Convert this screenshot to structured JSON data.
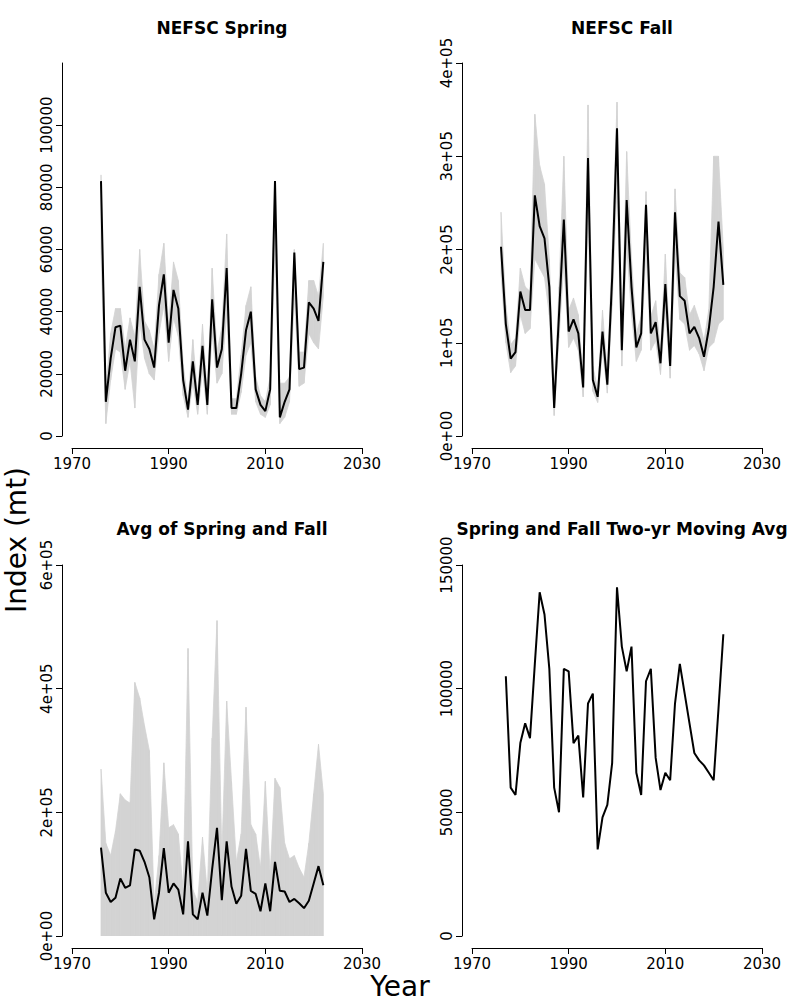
{
  "xlabel": "Year",
  "ylabel": "Index (mt)",
  "chart_data": [
    {
      "type": "line",
      "title": "NEFSC Spring",
      "color": "#000000",
      "grid": false,
      "xlim": [
        1970,
        2030
      ],
      "xticks": [
        1970,
        1990,
        2010,
        2030
      ],
      "ylim": [
        0,
        120000
      ],
      "yticks": [
        0,
        20000,
        40000,
        60000,
        80000,
        100000
      ],
      "x": [
        1976,
        1977,
        1978,
        1979,
        1980,
        1981,
        1982,
        1983,
        1984,
        1985,
        1986,
        1987,
        1988,
        1989,
        1990,
        1991,
        1992,
        1993,
        1994,
        1995,
        1996,
        1997,
        1998,
        1999,
        2000,
        2001,
        2002,
        2003,
        2004,
        2005,
        2006,
        2007,
        2008,
        2009,
        2010,
        2011,
        2012,
        2013,
        2014,
        2015,
        2016,
        2017,
        2018,
        2019,
        2020,
        2021,
        2022
      ],
      "values": [
        82000,
        11000,
        25000,
        35000,
        35500,
        21000,
        31000,
        24000,
        48000,
        31000,
        28000,
        22000,
        42000,
        52000,
        30000,
        47000,
        41000,
        18000,
        8500,
        24000,
        10000,
        29000,
        10000,
        44000,
        22000,
        28000,
        54000,
        9000,
        9000,
        20000,
        34000,
        40000,
        15000,
        10000,
        8000,
        15000,
        82000,
        6000,
        11000,
        15000,
        59000,
        21500,
        22000,
        43000,
        41000,
        37000,
        56000
      ],
      "lower": [
        60000,
        4000,
        18000,
        28000,
        27000,
        15000,
        24000,
        9000,
        37000,
        25000,
        20000,
        18000,
        33000,
        42000,
        24000,
        38000,
        32000,
        13000,
        6000,
        17000,
        7000,
        21000,
        7000,
        33000,
        17000,
        20000,
        40000,
        7000,
        7000,
        14000,
        26000,
        30000,
        11000,
        7000,
        6000,
        10000,
        62000,
        4000,
        6000,
        11000,
        45000,
        16000,
        17000,
        33000,
        30000,
        28000,
        45000
      ],
      "upper": [
        84000,
        15000,
        33000,
        41000,
        41000,
        28000,
        38000,
        32000,
        60000,
        37000,
        34000,
        28000,
        52000,
        62000,
        36000,
        56000,
        50000,
        23000,
        11000,
        31000,
        13000,
        36000,
        13000,
        54000,
        27000,
        35000,
        65000,
        12000,
        12000,
        26000,
        42000,
        48000,
        19000,
        13000,
        11000,
        19000,
        82000,
        17000,
        17000,
        19000,
        60000,
        27000,
        27000,
        50000,
        50000,
        45000,
        62000
      ]
    },
    {
      "type": "line",
      "title": "NEFSC Fall",
      "color": "#000000",
      "grid": false,
      "xlim": [
        1970,
        2030
      ],
      "xticks": [
        1970,
        1990,
        2010,
        2030
      ],
      "ylim": [
        0,
        400000
      ],
      "yticks": [
        {
          "value": 0,
          "label": "0e+00"
        },
        {
          "value": 100000,
          "label": "1e+05"
        },
        {
          "value": 200000,
          "label": "2e+05"
        },
        {
          "value": 300000,
          "label": "3e+05"
        },
        {
          "value": 400000,
          "label": "4e+05"
        }
      ],
      "x": [
        1976,
        1977,
        1978,
        1979,
        1980,
        1981,
        1982,
        1983,
        1984,
        1985,
        1986,
        1987,
        1988,
        1989,
        1990,
        1991,
        1992,
        1993,
        1994,
        1995,
        1996,
        1997,
        1998,
        1999,
        2000,
        2001,
        2002,
        2003,
        2004,
        2005,
        2006,
        2007,
        2008,
        2009,
        2010,
        2011,
        2012,
        2013,
        2014,
        2015,
        2016,
        2017,
        2018,
        2019,
        2020,
        2021,
        2022
      ],
      "values": [
        203000,
        120000,
        83000,
        90000,
        155000,
        135000,
        135000,
        258000,
        225000,
        212000,
        160000,
        30000,
        130000,
        232000,
        112000,
        125000,
        110000,
        52000,
        298000,
        60000,
        42000,
        112000,
        55000,
        170000,
        330000,
        92000,
        253000,
        160000,
        95000,
        110000,
        248000,
        110000,
        122000,
        78000,
        163000,
        75000,
        240000,
        150000,
        145000,
        110000,
        117000,
        105000,
        85000,
        115000,
        160000,
        230000,
        162000
      ],
      "lower": [
        175000,
        100000,
        68000,
        75000,
        130000,
        110000,
        115000,
        190000,
        180000,
        170000,
        130000,
        22000,
        105000,
        185000,
        95000,
        105000,
        92000,
        42000,
        240000,
        48000,
        36000,
        92000,
        46000,
        140000,
        270000,
        75000,
        205000,
        130000,
        80000,
        92000,
        200000,
        92000,
        102000,
        66000,
        135000,
        62000,
        195000,
        125000,
        120000,
        92000,
        97000,
        88000,
        70000,
        95000,
        100000,
        120000,
        125000
      ],
      "upper": [
        240000,
        140000,
        98000,
        105000,
        180000,
        160000,
        155000,
        345000,
        290000,
        270000,
        190000,
        40000,
        160000,
        300000,
        135000,
        148000,
        130000,
        62000,
        355000,
        75000,
        50000,
        135000,
        66000,
        200000,
        358000,
        110000,
        305000,
        190000,
        110000,
        128000,
        262000,
        128000,
        145000,
        92000,
        195000,
        90000,
        265000,
        175000,
        170000,
        130000,
        140000,
        124000,
        102000,
        136000,
        300000,
        300000,
        200000
      ]
    },
    {
      "type": "line",
      "title": "Avg of Spring and Fall",
      "color": "#000000",
      "grid": false,
      "xlim": [
        1970,
        2030
      ],
      "xticks": [
        1970,
        1990,
        2010,
        2030
      ],
      "ylim": [
        0,
        600000
      ],
      "yticks": [
        {
          "value": 0,
          "label": "0e+00"
        },
        {
          "value": 200000,
          "label": "2e+05"
        },
        {
          "value": 400000,
          "label": "4e+05"
        },
        {
          "value": 600000,
          "label": "6e+05"
        }
      ],
      "x": [
        1976,
        1977,
        1978,
        1979,
        1980,
        1981,
        1982,
        1983,
        1984,
        1985,
        1986,
        1987,
        1988,
        1989,
        1990,
        1991,
        1992,
        1993,
        1994,
        1995,
        1996,
        1997,
        1998,
        1999,
        2000,
        2001,
        2002,
        2003,
        2004,
        2005,
        2006,
        2007,
        2008,
        2009,
        2010,
        2011,
        2012,
        2013,
        2014,
        2015,
        2016,
        2017,
        2018,
        2019,
        2020,
        2021,
        2022
      ],
      "values": [
        143000,
        70000,
        55000,
        62000,
        93000,
        78000,
        82000,
        140000,
        138000,
        120000,
        95000,
        27000,
        70000,
        142000,
        70000,
        85000,
        75000,
        35000,
        153000,
        35000,
        27000,
        70000,
        33000,
        108000,
        175000,
        58000,
        153000,
        80000,
        52000,
        65000,
        141000,
        73000,
        68000,
        40000,
        85000,
        40000,
        120000,
        73000,
        72000,
        55000,
        60000,
        53000,
        45000,
        57000,
        85000,
        113000,
        82000
      ],
      "lower": [
        0,
        0,
        0,
        0,
        0,
        0,
        0,
        0,
        0,
        0,
        0,
        0,
        0,
        0,
        0,
        0,
        0,
        0,
        0,
        0,
        0,
        0,
        0,
        0,
        0,
        0,
        0,
        0,
        0,
        0,
        0,
        0,
        0,
        0,
        0,
        0,
        0,
        0,
        0,
        0,
        0,
        0,
        0,
        0,
        0,
        0,
        0
      ],
      "upper": [
        270000,
        150000,
        130000,
        170000,
        230000,
        220000,
        215000,
        410000,
        385000,
        340000,
        300000,
        50000,
        130000,
        280000,
        175000,
        180000,
        165000,
        75000,
        465000,
        75000,
        55000,
        160000,
        70000,
        320000,
        510000,
        130000,
        380000,
        250000,
        120000,
        165000,
        370000,
        180000,
        165000,
        110000,
        250000,
        100000,
        255000,
        240000,
        150000,
        125000,
        130000,
        110000,
        95000,
        150000,
        230000,
        310000,
        230000
      ]
    },
    {
      "type": "line",
      "title": "Spring and Fall Two-yr Moving Avg",
      "color": "#000000",
      "grid": false,
      "xlim": [
        1970,
        2030
      ],
      "xticks": [
        1970,
        1990,
        2010,
        2030
      ],
      "ylim": [
        0,
        150000
      ],
      "yticks": [
        0,
        50000,
        100000,
        150000
      ],
      "x": [
        1977,
        1978,
        1979,
        1980,
        1981,
        1982,
        1983,
        1984,
        1985,
        1986,
        1987,
        1988,
        1989,
        1990,
        1991,
        1992,
        1993,
        1994,
        1995,
        1996,
        1997,
        1998,
        1999,
        2000,
        2001,
        2002,
        2003,
        2004,
        2005,
        2006,
        2007,
        2008,
        2009,
        2010,
        2011,
        2012,
        2013,
        2014,
        2015,
        2016,
        2017,
        2018,
        2019,
        2020,
        2021,
        2022
      ],
      "values": [
        105000,
        60000,
        57000,
        78000,
        86000,
        80000,
        110000,
        139000,
        130000,
        108000,
        60000,
        50000,
        108000,
        107000,
        78000,
        81000,
        56000,
        94000,
        98000,
        35000,
        48000,
        53000,
        70000,
        141000,
        117000,
        107000,
        117000,
        66000,
        57000,
        103000,
        108000,
        72000,
        59000,
        66000,
        63000,
        94000,
        110000,
        98000,
        86000,
        74000,
        71000,
        69000,
        66000,
        63000,
        92000,
        122000
      ]
    }
  ]
}
